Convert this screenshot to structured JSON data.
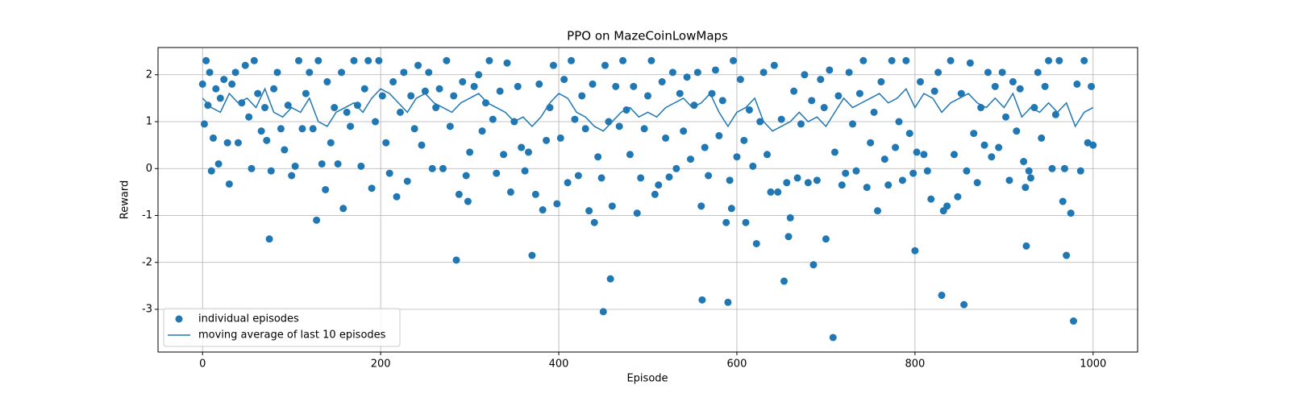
{
  "chart_data": {
    "type": "scatter",
    "title": "PPO on MazeCoinLowMaps",
    "x_label": "Episode",
    "y_label": "Reward",
    "xlim": [
      -50,
      1050
    ],
    "ylim": [
      -3.91,
      2.58
    ],
    "xticks": [
      0,
      200,
      400,
      600,
      800,
      1000
    ],
    "yticks": [
      -3,
      -2,
      -1,
      0,
      1,
      2
    ],
    "grid": true,
    "legend": "lower left",
    "series": [
      {
        "name": "individual episodes",
        "color": "#1f77b4",
        "mode": "markers",
        "x": [
          0,
          2,
          4,
          6,
          8,
          10,
          12,
          15,
          18,
          20,
          24,
          28,
          30,
          33,
          37,
          40,
          44,
          48,
          52,
          55,
          58,
          62,
          66,
          70,
          72,
          75,
          77,
          80,
          84,
          88,
          92,
          96,
          100,
          104,
          108,
          112,
          116,
          120,
          124,
          128,
          130,
          134,
          138,
          140,
          144,
          148,
          152,
          156,
          158,
          162,
          166,
          170,
          174,
          178,
          182,
          186,
          190,
          194,
          198,
          202,
          206,
          210,
          214,
          218,
          222,
          226,
          230,
          234,
          238,
          242,
          246,
          250,
          254,
          258,
          262,
          266,
          270,
          274,
          278,
          282,
          285,
          288,
          292,
          296,
          298,
          300,
          305,
          310,
          314,
          318,
          322,
          326,
          330,
          334,
          338,
          342,
          346,
          350,
          354,
          358,
          362,
          366,
          370,
          374,
          378,
          382,
          386,
          390,
          394,
          398,
          402,
          406,
          410,
          414,
          418,
          422,
          426,
          430,
          434,
          438,
          440,
          444,
          448,
          450,
          452,
          456,
          458,
          460,
          464,
          468,
          472,
          476,
          480,
          484,
          488,
          492,
          496,
          500,
          504,
          508,
          512,
          516,
          520,
          524,
          528,
          532,
          536,
          540,
          544,
          548,
          552,
          556,
          560,
          561,
          564,
          568,
          572,
          576,
          580,
          584,
          588,
          590,
          592,
          594,
          596,
          600,
          604,
          608,
          610,
          614,
          618,
          622,
          626,
          630,
          634,
          638,
          642,
          646,
          650,
          653,
          656,
          658,
          660,
          664,
          668,
          672,
          676,
          680,
          684,
          686,
          690,
          694,
          698,
          700,
          704,
          708,
          710,
          714,
          718,
          722,
          726,
          730,
          734,
          738,
          742,
          746,
          750,
          754,
          758,
          762,
          766,
          770,
          774,
          778,
          782,
          786,
          790,
          794,
          798,
          800,
          802,
          806,
          810,
          814,
          818,
          822,
          826,
          830,
          832,
          836,
          840,
          844,
          848,
          852,
          855,
          858,
          862,
          866,
          870,
          874,
          878,
          882,
          886,
          890,
          894,
          898,
          902,
          906,
          910,
          914,
          918,
          922,
          924,
          925,
          928,
          930,
          934,
          938,
          942,
          946,
          950,
          954,
          958,
          962,
          966,
          968,
          970,
          975,
          978,
          982,
          986,
          990,
          994,
          998,
          1000
        ],
        "values": [
          1.8,
          0.95,
          2.3,
          1.35,
          2.05,
          -0.05,
          0.65,
          1.7,
          0.1,
          1.5,
          1.9,
          0.55,
          -0.33,
          1.8,
          2.05,
          0.55,
          1.4,
          2.2,
          1.1,
          0.0,
          2.3,
          1.6,
          0.8,
          1.3,
          0.6,
          -1.5,
          -0.05,
          1.7,
          2.05,
          0.85,
          0.4,
          1.35,
          -0.15,
          0.05,
          2.3,
          0.85,
          1.6,
          2.05,
          0.85,
          -1.1,
          2.3,
          0.1,
          -0.45,
          1.85,
          0.55,
          1.3,
          0.1,
          2.05,
          -0.85,
          1.2,
          0.9,
          2.3,
          1.35,
          0.05,
          1.7,
          2.3,
          -0.42,
          1.0,
          2.3,
          1.55,
          0.55,
          -0.1,
          1.85,
          -0.6,
          1.2,
          2.05,
          -0.27,
          1.55,
          0.85,
          2.2,
          0.5,
          1.65,
          2.05,
          0.0,
          1.3,
          1.7,
          0.0,
          2.3,
          0.9,
          1.55,
          -1.95,
          -0.55,
          1.85,
          -0.15,
          -0.7,
          0.35,
          1.75,
          2.0,
          0.8,
          1.4,
          2.3,
          1.05,
          -0.1,
          1.65,
          0.3,
          2.25,
          -0.5,
          1.0,
          1.75,
          0.45,
          -0.05,
          0.35,
          -1.85,
          -0.55,
          1.8,
          -0.88,
          0.6,
          1.3,
          2.2,
          -0.75,
          0.65,
          1.9,
          -0.3,
          2.3,
          1.05,
          -0.15,
          1.55,
          0.85,
          -0.9,
          1.8,
          -1.15,
          0.25,
          -0.2,
          -3.05,
          2.2,
          1.0,
          -2.35,
          -0.8,
          1.75,
          0.9,
          2.3,
          1.25,
          0.3,
          1.75,
          -0.95,
          -0.2,
          0.85,
          1.55,
          2.3,
          -0.55,
          -0.35,
          1.85,
          0.65,
          -0.18,
          2.05,
          0.0,
          1.6,
          0.8,
          1.95,
          0.2,
          1.35,
          2.05,
          -0.8,
          -2.8,
          0.45,
          -0.15,
          1.6,
          2.1,
          0.7,
          1.45,
          -1.15,
          -2.85,
          -0.25,
          -0.85,
          2.3,
          0.25,
          1.9,
          0.6,
          -1.15,
          1.25,
          0.05,
          -1.6,
          1.0,
          2.05,
          0.3,
          -0.5,
          2.2,
          -0.5,
          1.05,
          -2.4,
          -0.3,
          -1.45,
          -1.05,
          1.65,
          -0.2,
          0.95,
          2.0,
          -0.3,
          1.45,
          -2.05,
          -0.25,
          1.9,
          1.3,
          -1.5,
          2.1,
          -3.6,
          0.35,
          1.55,
          -0.35,
          -0.1,
          2.05,
          0.95,
          -0.05,
          1.6,
          2.3,
          -0.4,
          0.55,
          1.2,
          -0.9,
          1.85,
          0.2,
          -0.35,
          2.3,
          0.45,
          1.0,
          -0.25,
          2.3,
          0.75,
          -0.1,
          -1.75,
          0.35,
          1.85,
          0.3,
          -0.05,
          -0.65,
          1.65,
          2.05,
          -2.7,
          -0.9,
          -0.8,
          2.3,
          0.3,
          -0.6,
          1.6,
          -2.9,
          -0.05,
          2.25,
          0.75,
          -0.3,
          1.3,
          0.5,
          2.05,
          0.25,
          1.75,
          0.45,
          2.05,
          1.1,
          -0.25,
          1.85,
          0.8,
          1.7,
          0.15,
          -0.4,
          -1.65,
          -0.05,
          -0.2,
          1.3,
          2.05,
          0.65,
          1.75,
          2.3,
          0.0,
          1.15,
          2.3,
          -0.7,
          0.0,
          -1.85,
          -0.95,
          -3.25,
          1.8,
          -0.05,
          2.3,
          0.55,
          1.75,
          0.5
        ]
      },
      {
        "name": "moving average of last 10 episodes",
        "color": "#1f77b4",
        "mode": "line",
        "x": [
          0,
          10,
          20,
          30,
          40,
          50,
          60,
          70,
          80,
          90,
          100,
          110,
          120,
          130,
          140,
          150,
          160,
          170,
          180,
          190,
          200,
          210,
          220,
          230,
          240,
          250,
          260,
          270,
          280,
          290,
          300,
          310,
          320,
          330,
          340,
          350,
          360,
          370,
          380,
          390,
          400,
          410,
          420,
          430,
          440,
          450,
          460,
          470,
          480,
          490,
          500,
          510,
          520,
          530,
          540,
          550,
          560,
          570,
          580,
          590,
          600,
          610,
          620,
          630,
          640,
          650,
          660,
          670,
          680,
          690,
          700,
          710,
          720,
          730,
          740,
          750,
          760,
          770,
          780,
          790,
          800,
          810,
          820,
          830,
          840,
          850,
          860,
          870,
          880,
          890,
          900,
          910,
          920,
          930,
          940,
          950,
          960,
          970,
          980,
          990,
          1000
        ],
        "values": [
          1.5,
          1.3,
          1.2,
          1.6,
          1.4,
          1.5,
          1.3,
          1.7,
          1.2,
          1.1,
          1.3,
          1.2,
          1.5,
          1.0,
          0.9,
          1.2,
          1.3,
          1.4,
          1.2,
          1.5,
          1.7,
          1.6,
          1.4,
          1.2,
          1.5,
          1.6,
          1.4,
          1.3,
          1.2,
          1.4,
          1.5,
          1.6,
          1.4,
          1.3,
          1.2,
          1.0,
          1.1,
          0.9,
          1.1,
          1.4,
          1.6,
          1.5,
          1.2,
          1.1,
          0.9,
          0.8,
          1.0,
          1.2,
          1.3,
          1.1,
          1.2,
          1.1,
          1.3,
          1.4,
          1.5,
          1.3,
          1.4,
          1.6,
          1.2,
          0.9,
          1.2,
          1.3,
          1.5,
          1.0,
          0.8,
          0.9,
          1.0,
          1.2,
          1.0,
          1.1,
          0.9,
          1.2,
          1.5,
          1.3,
          1.4,
          1.5,
          1.6,
          1.4,
          1.5,
          1.7,
          1.3,
          1.6,
          1.5,
          1.2,
          1.4,
          1.5,
          1.6,
          1.4,
          1.3,
          1.5,
          1.3,
          1.6,
          1.1,
          1.3,
          1.2,
          1.4,
          1.2,
          1.4,
          0.9,
          1.2,
          1.3
        ]
      }
    ]
  }
}
